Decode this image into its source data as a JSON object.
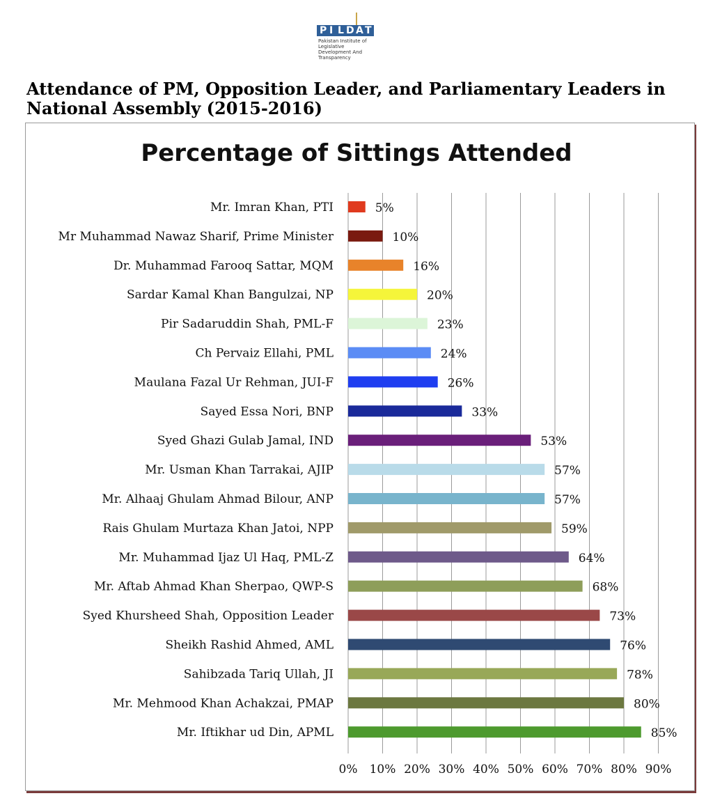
{
  "logo": {
    "letters": [
      "P",
      "I",
      "L",
      "D",
      "A",
      "T"
    ],
    "tagline": "Pakistan Institute of Legislative Development And Transparency"
  },
  "heading": "Attendance of PM, Opposition Leader, and Parliamentary Leaders in National Assembly (2015-2016)",
  "chart_data": {
    "type": "bar",
    "orientation": "horizontal",
    "title": "Percentage of Sittings Attended",
    "xlabel": "",
    "ylabel": "",
    "xlim": [
      0,
      90
    ],
    "grid": true,
    "legend": "none",
    "ticks": [
      "0%",
      "10%",
      "20%",
      "30%",
      "40%",
      "50%",
      "60%",
      "70%",
      "80%",
      "90%"
    ],
    "categories": [
      "Mr. Imran Khan, PTI",
      "Mr Muhammad Nawaz Sharif, Prime Minister",
      "Dr. Muhammad Farooq Sattar, MQM",
      "Sardar Kamal Khan Bangulzai, NP",
      "Pir Sadaruddin Shah, PML-F",
      "Ch Pervaiz Ellahi, PML",
      "Maulana Fazal Ur Rehman, JUI-F",
      "Sayed Essa Nori, BNP",
      "Syed Ghazi Gulab Jamal, IND",
      "Mr. Usman Khan Tarrakai, AJIP",
      "Mr. Alhaaj Ghulam Ahmad Bilour, ANP",
      "Rais Ghulam Murtaza Khan Jatoi, NPP",
      "Mr. Muhammad Ijaz Ul Haq, PML-Z",
      "Mr. Aftab Ahmad Khan Sherpao, QWP-S",
      "Syed Khursheed Shah, Opposition Leader",
      "Sheikh Rashid Ahmed, AML",
      "Sahibzada Tariq Ullah, JI",
      "Mr. Mehmood Khan Achakzai, PMAP",
      "Mr. Iftikhar ud Din, APML"
    ],
    "values": [
      5,
      10,
      16,
      20,
      23,
      24,
      26,
      33,
      53,
      57,
      57,
      59,
      64,
      68,
      73,
      76,
      78,
      80,
      85
    ],
    "value_labels": [
      "5%",
      "10%",
      "16%",
      "20%",
      "23%",
      "24%",
      "26%",
      "33%",
      "53%",
      "57%",
      "57%",
      "59%",
      "64%",
      "68%",
      "73%",
      "76%",
      "78%",
      "80%",
      "85%"
    ],
    "colors": [
      "#e03a1e",
      "#7a1a10",
      "#e8832a",
      "#f5f53a",
      "#dcf5d8",
      "#5b8cf5",
      "#1f3ef0",
      "#1a2a9a",
      "#6a1f7a",
      "#b9dbe9",
      "#78b4cc",
      "#a09a6a",
      "#6e5a8a",
      "#8e9e5a",
      "#9a4848",
      "#2f4a72",
      "#98a858",
      "#6c7840",
      "#4d9a2e"
    ]
  }
}
